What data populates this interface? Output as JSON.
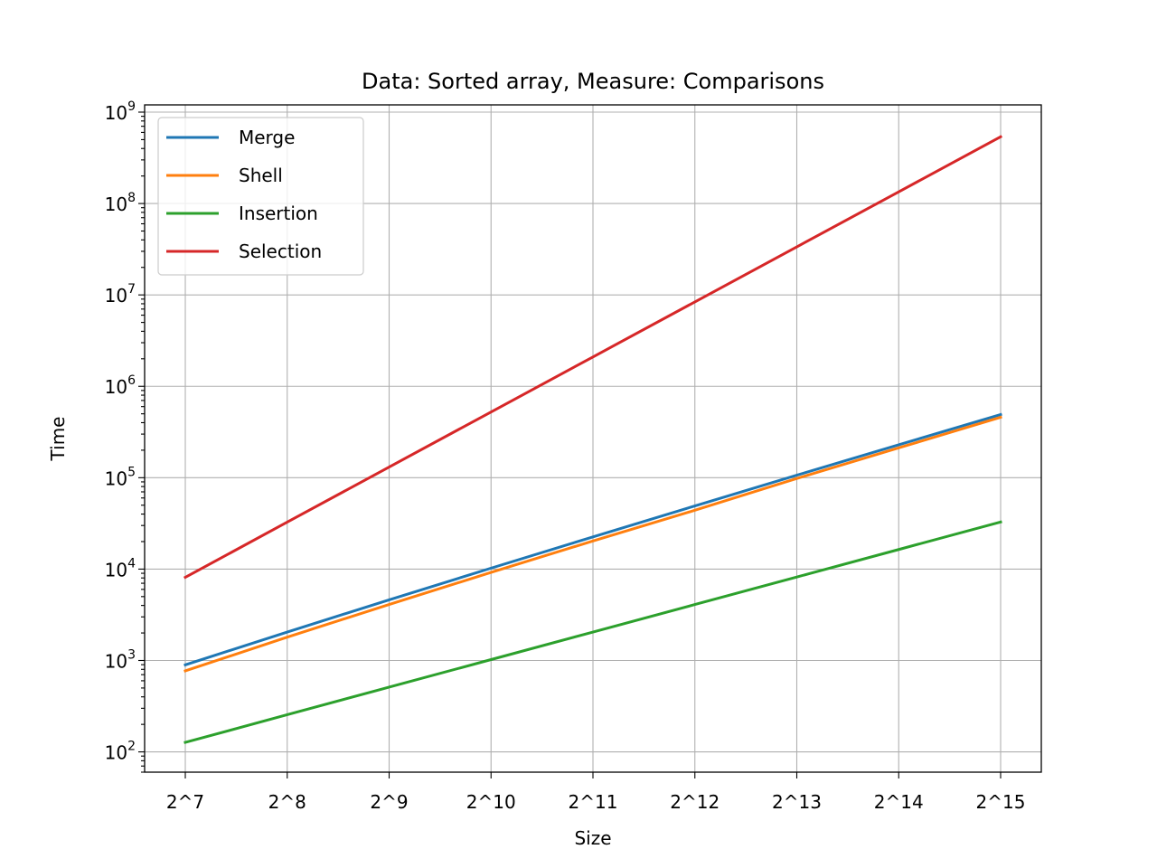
{
  "chart_data": {
    "type": "line",
    "title": "Data: Sorted array, Measure: Comparisons",
    "xlabel": "Size",
    "ylabel": "Time",
    "y_scale": "log",
    "ylim": [
      60,
      1200000000
    ],
    "grid": true,
    "legend_position": "top-left",
    "categories": [
      "2^7",
      "2^8",
      "2^9",
      "2^10",
      "2^11",
      "2^12",
      "2^13",
      "2^14",
      "2^15"
    ],
    "y_ticks": [
      {
        "base": "10",
        "exp": "2",
        "value": 100
      },
      {
        "base": "10",
        "exp": "3",
        "value": 1000
      },
      {
        "base": "10",
        "exp": "4",
        "value": 10000
      },
      {
        "base": "10",
        "exp": "5",
        "value": 100000
      },
      {
        "base": "10",
        "exp": "6",
        "value": 1000000
      },
      {
        "base": "10",
        "exp": "7",
        "value": 10000000
      },
      {
        "base": "10",
        "exp": "8",
        "value": 100000000
      },
      {
        "base": "10",
        "exp": "9",
        "value": 1000000000
      }
    ],
    "series": [
      {
        "name": "Merge",
        "color": "#1f77b4",
        "values": [
          896,
          2048,
          4608,
          10240,
          22528,
          49152,
          106496,
          229376,
          491520
        ]
      },
      {
        "name": "Shell",
        "color": "#ff7f0e",
        "values": [
          770,
          1800,
          4100,
          9200,
          20300,
          44000,
          98000,
          212000,
          458000
        ]
      },
      {
        "name": "Insertion",
        "color": "#2ca02c",
        "values": [
          127,
          255,
          511,
          1023,
          2047,
          4095,
          8191,
          16383,
          32767
        ]
      },
      {
        "name": "Selection",
        "color": "#d62728",
        "values": [
          8128,
          32640,
          130816,
          523776,
          2096128,
          8386560,
          33550336,
          134209536,
          536854528
        ]
      }
    ]
  }
}
